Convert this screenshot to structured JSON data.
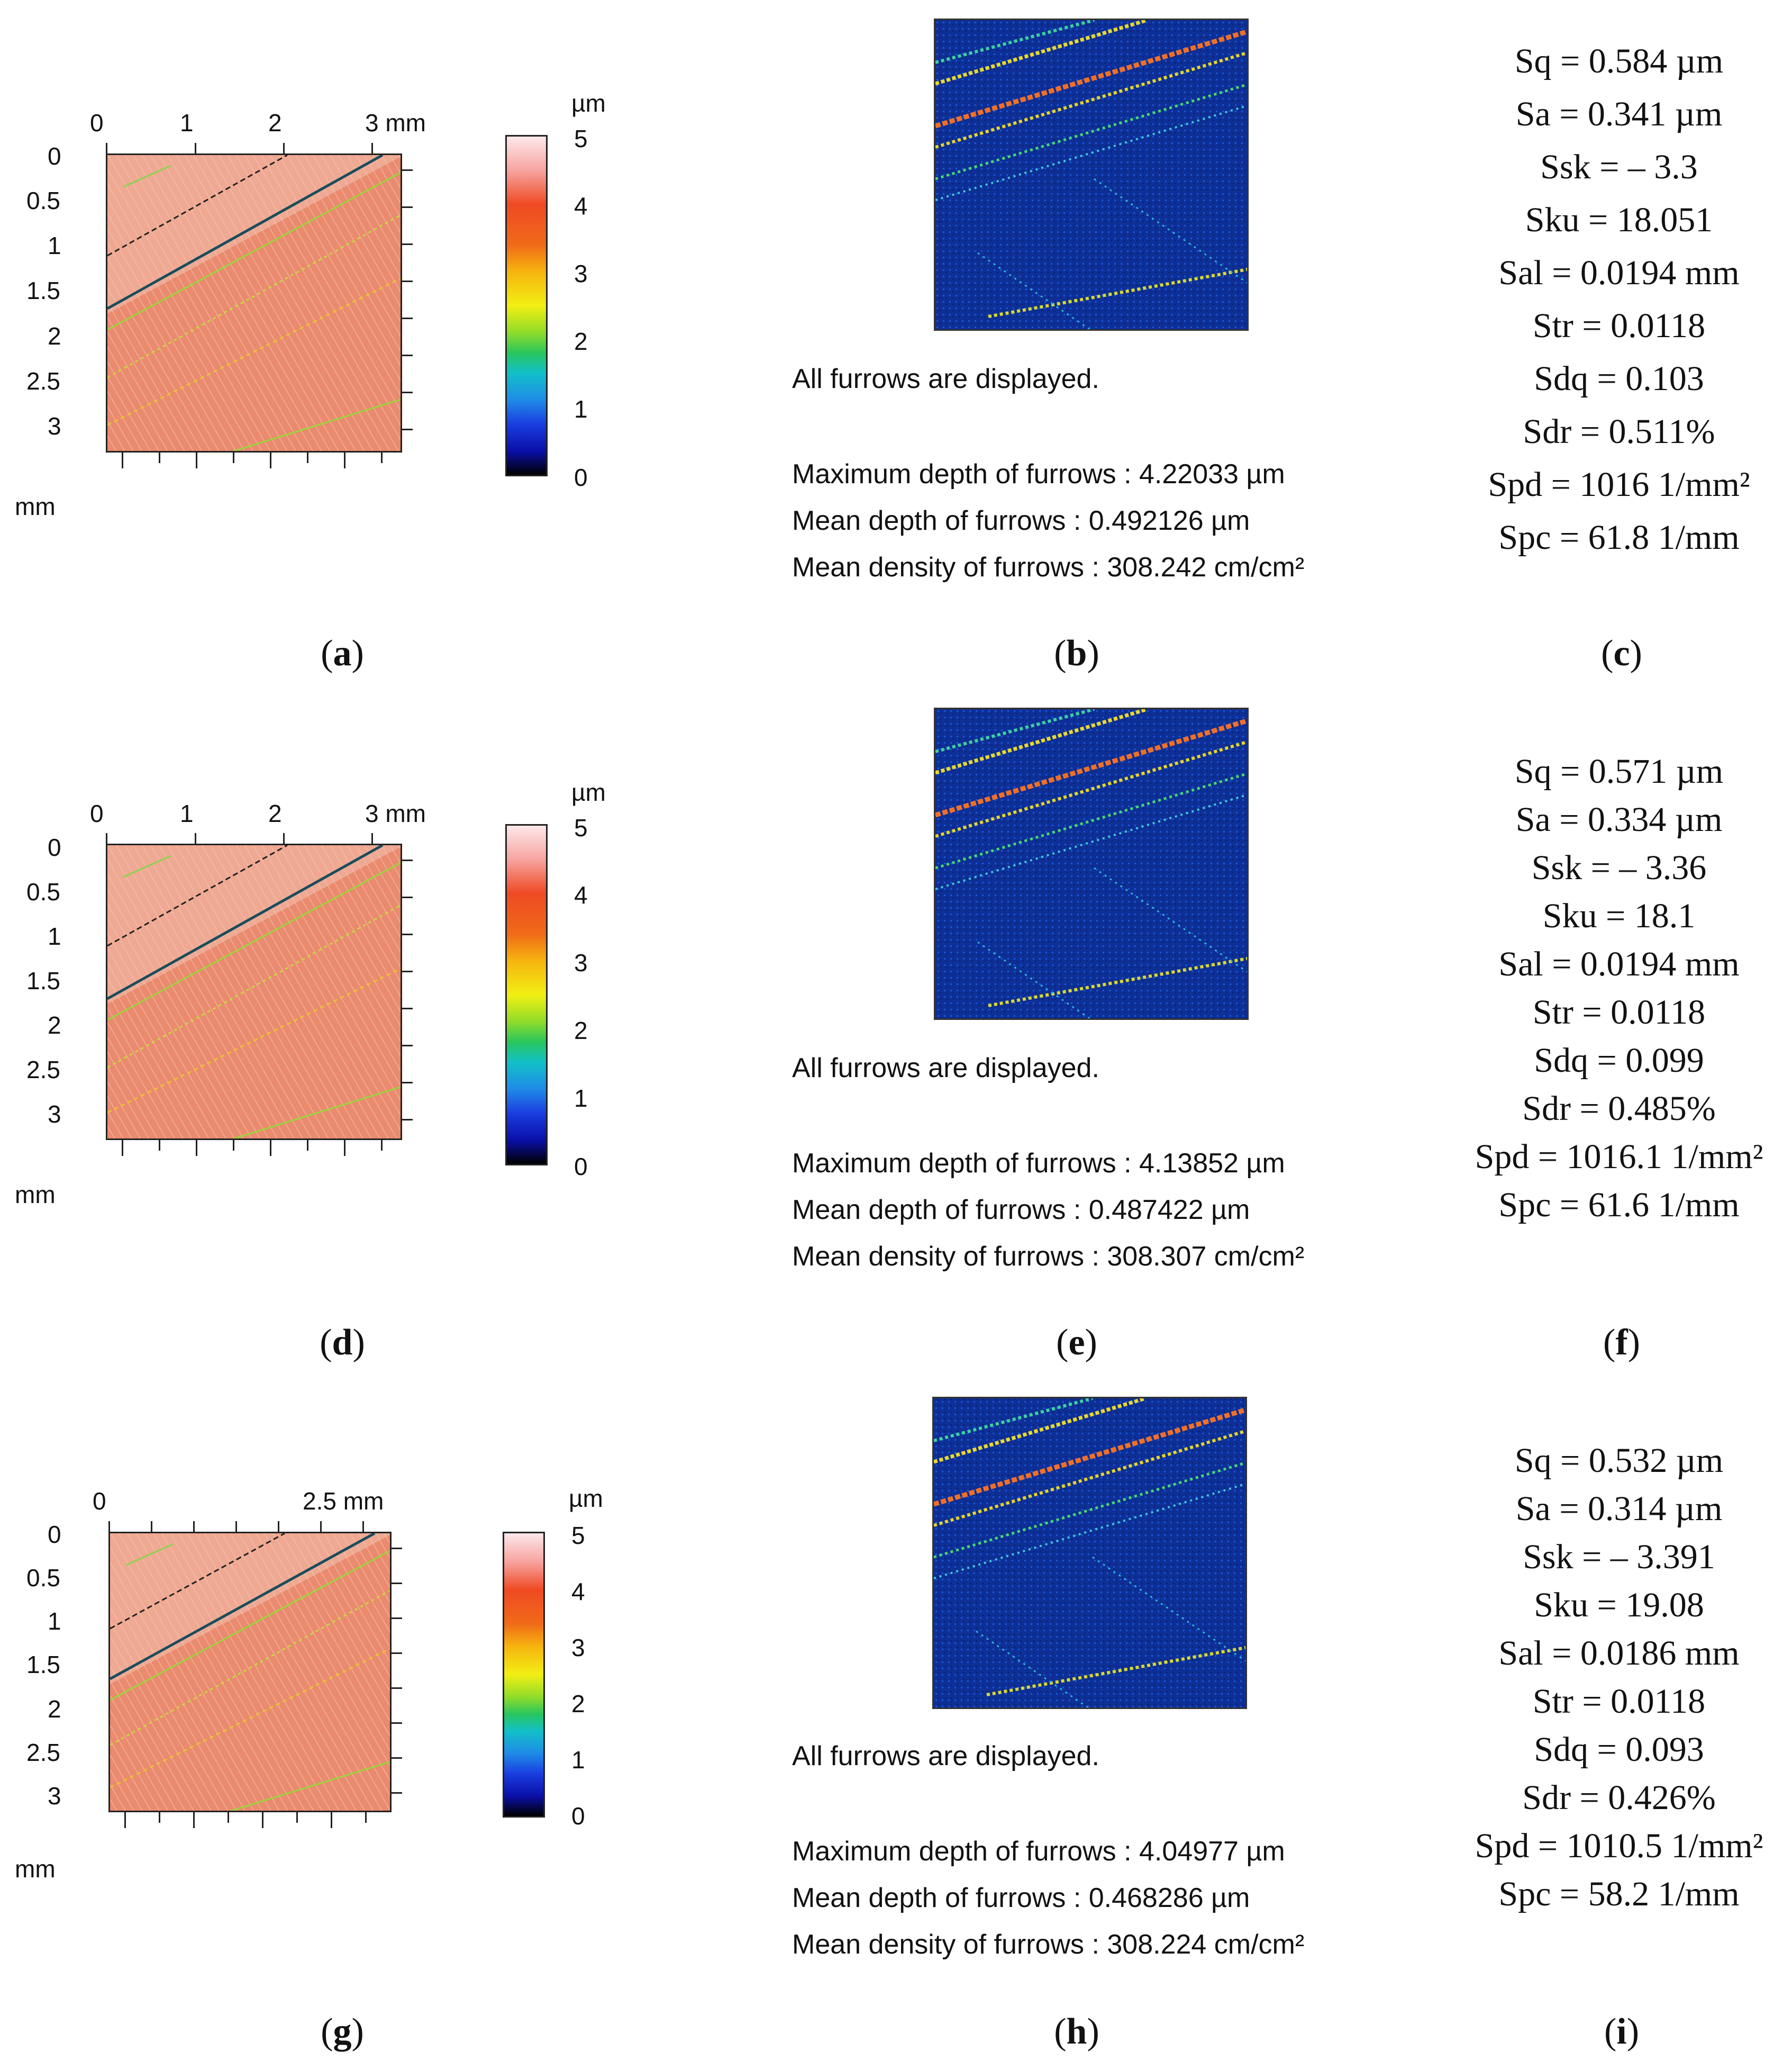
{
  "panels": [
    {
      "row": 0,
      "heightmap": {
        "x_ticks": [
          "0",
          "1",
          "2",
          "3 mm"
        ],
        "y_ticks": [
          "0",
          "0.5",
          "1",
          "1.5",
          "2",
          "2.5",
          "3"
        ],
        "y_unit": "mm"
      },
      "colorbar": {
        "unit": "µm",
        "ticks": [
          "5",
          "4",
          "3",
          "2",
          "1",
          "0"
        ]
      },
      "furrows": {
        "note": "All furrows are displayed.",
        "max_depth": "Maximum depth of furrows : 4.22033 µm",
        "mean_depth": "Mean depth of furrows : 0.492126 µm",
        "mean_density": "Mean density of furrows : 308.242 cm/cm²"
      },
      "stats": [
        "Sq = 0.584 µm",
        "Sa = 0.341 µm",
        "Ssk = – 3.3",
        "Sku = 18.051",
        "Sal = 0.0194 mm",
        "Str = 0.0118",
        "Sdq = 0.103",
        "Sdr = 0.511%",
        "Spd = 1016 1/mm²",
        "Spc = 61.8 1/mm"
      ],
      "captions": [
        "a",
        "b",
        "c"
      ]
    },
    {
      "row": 1,
      "heightmap": {
        "x_ticks": [
          "0",
          "1",
          "2",
          "3 mm"
        ],
        "y_ticks": [
          "0",
          "0.5",
          "1",
          "1.5",
          "2",
          "2.5",
          "3"
        ],
        "y_unit": "mm"
      },
      "colorbar": {
        "unit": "µm",
        "ticks": [
          "5",
          "4",
          "3",
          "2",
          "1",
          "0"
        ]
      },
      "furrows": {
        "note": "All furrows are displayed.",
        "max_depth": "Maximum depth of furrows : 4.13852 µm",
        "mean_depth": "Mean depth of furrows : 0.487422 µm",
        "mean_density": "Mean density of furrows : 308.307 cm/cm²"
      },
      "stats": [
        "Sq = 0.571 µm",
        "Sa = 0.334 µm",
        "Ssk = – 3.36",
        "Sku = 18.1",
        "Sal = 0.0194 mm",
        "Str = 0.0118",
        "Sdq = 0.099",
        "Sdr = 0.485%",
        "Spd = 1016.1 1/mm²",
        "Spc = 61.6 1/mm"
      ],
      "captions": [
        "d",
        "e",
        "f"
      ]
    },
    {
      "row": 2,
      "heightmap": {
        "x_ticks": [
          "0",
          "2.5 mm"
        ],
        "y_ticks": [
          "0",
          "0.5",
          "1",
          "1.5",
          "2",
          "2.5",
          "3"
        ],
        "y_unit": "mm"
      },
      "colorbar": {
        "unit": "µm",
        "ticks": [
          "5",
          "4",
          "3",
          "2",
          "1",
          "0"
        ]
      },
      "furrows": {
        "note": "All furrows are displayed.",
        "max_depth": "Maximum depth of furrows : 4.04977 µm",
        "mean_depth": "Mean depth of furrows : 0.468286 µm",
        "mean_density": "Mean density of furrows : 308.224 cm/cm²"
      },
      "stats": [
        "Sq = 0.532 µm",
        "Sa = 0.314 µm",
        "Ssk = – 3.391",
        "Sku = 19.08",
        "Sal = 0.0186 mm",
        "Str = 0.0118",
        "Sdq = 0.093",
        "Sdr = 0.426%",
        "Spd = 1010.5 1/mm²",
        "Spc = 58.2 1/mm"
      ],
      "captions": [
        "g",
        "h",
        "i"
      ]
    }
  ]
}
